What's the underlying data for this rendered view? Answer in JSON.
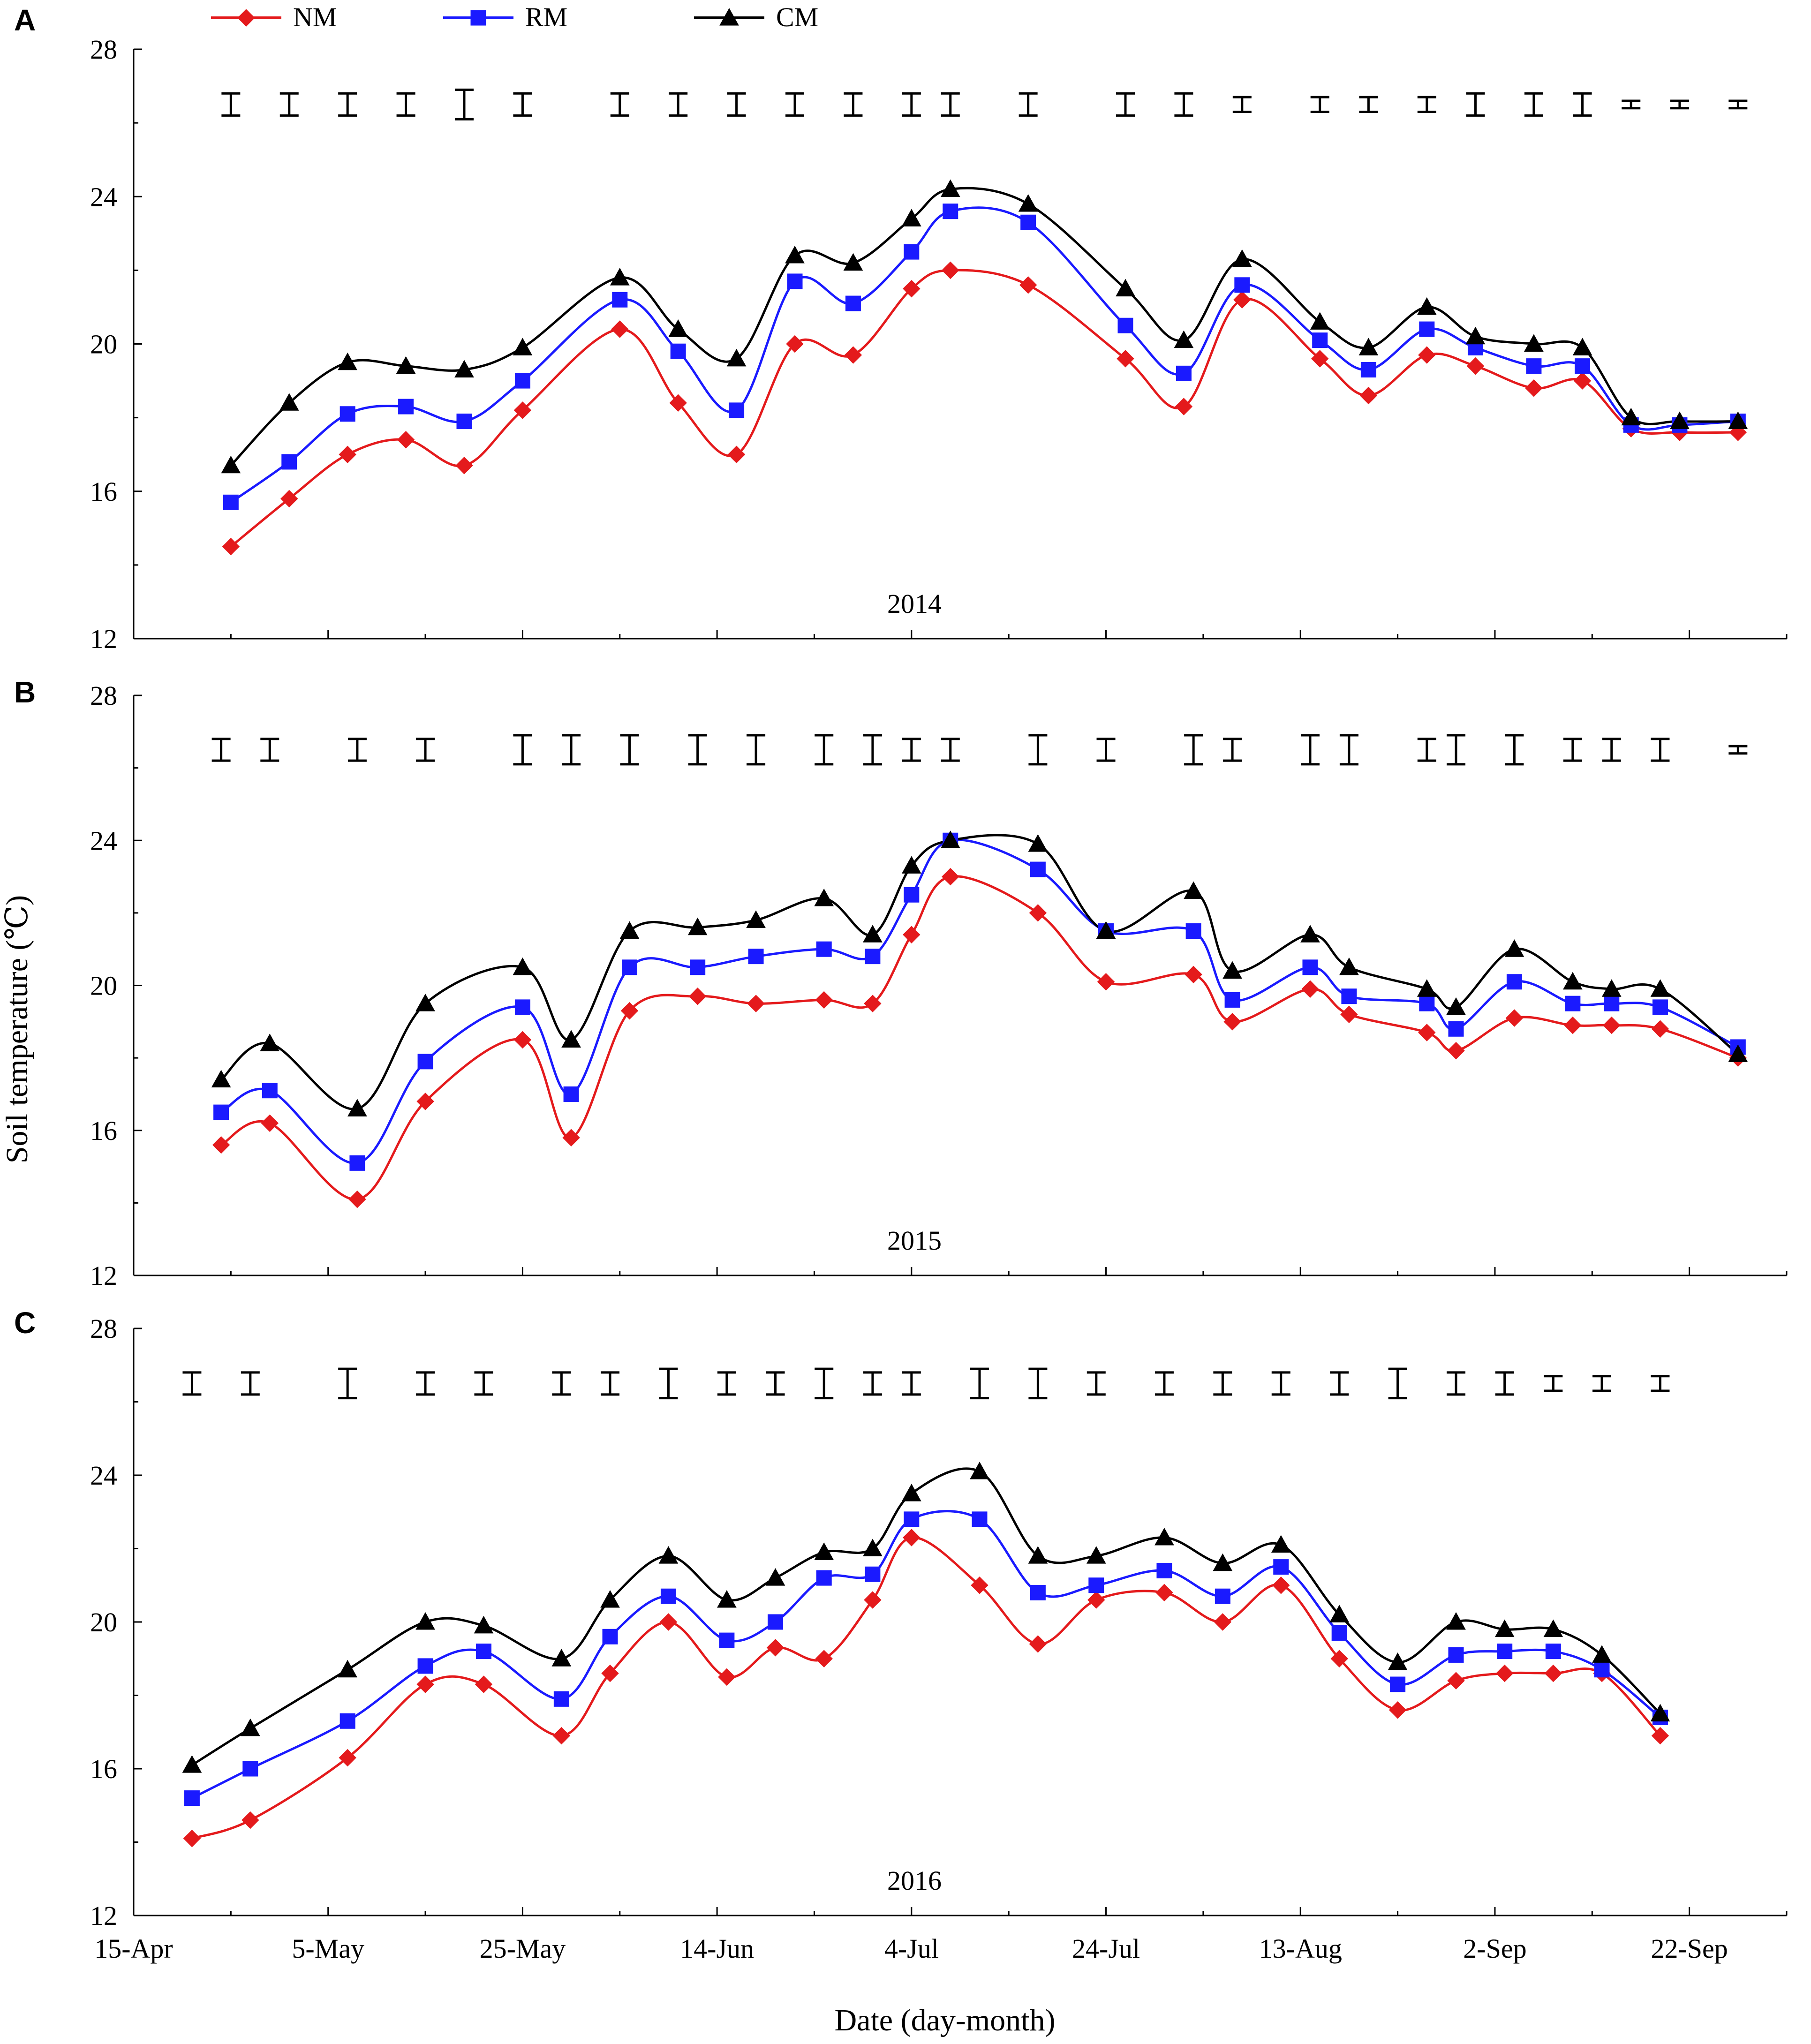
{
  "colors": {
    "NM": "#e41a1c",
    "RM": "#1a1aff",
    "CM": "#000000",
    "axis": "#000000"
  },
  "legend": [
    {
      "key": "NM",
      "label": "NM",
      "marker": "diamond"
    },
    {
      "key": "RM",
      "label": "RM",
      "marker": "square"
    },
    {
      "key": "CM",
      "label": "CM",
      "marker": "triangle"
    }
  ],
  "shared": {
    "ylabel": "Soil temperature (℃)",
    "xlabel": "Date (day-month)",
    "ylim": [
      12,
      28
    ],
    "yticks": [
      12,
      16,
      20,
      24,
      28
    ],
    "xlim_day_of_year": [
      105,
      275
    ],
    "xticks": [
      {
        "day": 105,
        "label": "15-Apr"
      },
      {
        "day": 125,
        "label": "5-May"
      },
      {
        "day": 145,
        "label": "25-May"
      },
      {
        "day": 165,
        "label": "14-Jun"
      },
      {
        "day": 185,
        "label": "4-Jul"
      },
      {
        "day": 205,
        "label": "24-Jul"
      },
      {
        "day": 225,
        "label": "13-Aug"
      },
      {
        "day": 245,
        "label": "2-Sep"
      },
      {
        "day": 265,
        "label": "22-Sep"
      }
    ]
  },
  "chart_data": [
    {
      "type": "line",
      "panel": "A",
      "annotation": "2014",
      "x": [
        115,
        121,
        127,
        133,
        139,
        145,
        155,
        161,
        167,
        173,
        179,
        185,
        189,
        197,
        207,
        213,
        219,
        227,
        232,
        238,
        243,
        249,
        254,
        259,
        264,
        270
      ],
      "series": [
        {
          "name": "NM",
          "values": [
            14.5,
            15.8,
            17.0,
            17.4,
            16.7,
            18.2,
            20.4,
            18.4,
            17.0,
            20.0,
            19.7,
            21.5,
            22.0,
            21.6,
            19.6,
            18.3,
            21.2,
            19.6,
            18.6,
            19.7,
            19.4,
            18.8,
            19.0,
            17.7,
            17.6,
            17.6
          ]
        },
        {
          "name": "RM",
          "values": [
            15.7,
            16.8,
            18.1,
            18.3,
            17.9,
            19.0,
            21.2,
            19.8,
            18.2,
            21.7,
            21.1,
            22.5,
            23.6,
            23.3,
            20.5,
            19.2,
            21.6,
            20.1,
            19.3,
            20.4,
            19.9,
            19.4,
            19.4,
            17.8,
            17.8,
            17.9
          ]
        },
        {
          "name": "CM",
          "values": [
            16.7,
            18.4,
            19.5,
            19.4,
            19.3,
            19.9,
            21.8,
            20.4,
            19.6,
            22.4,
            22.2,
            23.4,
            24.2,
            23.8,
            21.5,
            20.1,
            22.3,
            20.6,
            19.9,
            21.0,
            20.2,
            20.0,
            19.9,
            18.0,
            17.9,
            17.9
          ]
        }
      ],
      "error_bar_halfwidth": [
        0.3,
        0.3,
        0.3,
        0.3,
        0.4,
        0.3,
        0.3,
        0.3,
        0.3,
        0.3,
        0.3,
        0.3,
        0.3,
        0.3,
        0.3,
        0.3,
        0.2,
        0.2,
        0.2,
        0.2,
        0.3,
        0.3,
        0.3,
        0.1,
        0.1,
        0.1
      ]
    },
    {
      "type": "line",
      "panel": "B",
      "annotation": "2015",
      "x": [
        114,
        119,
        128,
        135,
        145,
        150,
        156,
        163,
        169,
        176,
        181,
        185,
        189,
        198,
        205,
        214,
        218,
        226,
        230,
        238,
        241,
        247,
        253,
        257,
        262,
        270
      ],
      "series": [
        {
          "name": "NM",
          "values": [
            15.6,
            16.2,
            14.1,
            16.8,
            18.5,
            15.8,
            19.3,
            19.7,
            19.5,
            19.6,
            19.5,
            21.4,
            23.0,
            22.0,
            20.1,
            20.3,
            19.0,
            19.9,
            19.2,
            18.7,
            18.2,
            19.1,
            18.9,
            18.9,
            18.8,
            18.0
          ]
        },
        {
          "name": "RM",
          "values": [
            16.5,
            17.1,
            15.1,
            17.9,
            19.4,
            17.0,
            20.5,
            20.5,
            20.8,
            21.0,
            20.8,
            22.5,
            24.0,
            23.2,
            21.5,
            21.5,
            19.6,
            20.5,
            19.7,
            19.5,
            18.8,
            20.1,
            19.5,
            19.5,
            19.4,
            18.3
          ]
        },
        {
          "name": "CM",
          "values": [
            17.4,
            18.4,
            16.6,
            19.5,
            20.5,
            18.5,
            21.5,
            21.6,
            21.8,
            22.4,
            21.4,
            23.3,
            24.0,
            23.9,
            21.5,
            22.6,
            20.4,
            21.4,
            20.5,
            19.9,
            19.4,
            21.0,
            20.1,
            19.9,
            19.9,
            18.1
          ]
        }
      ],
      "error_bar_halfwidth": [
        0.3,
        0.3,
        0.3,
        0.3,
        0.4,
        0.4,
        0.4,
        0.4,
        0.4,
        0.4,
        0.4,
        0.3,
        0.3,
        0.4,
        0.3,
        0.4,
        0.3,
        0.4,
        0.4,
        0.3,
        0.4,
        0.4,
        0.3,
        0.3,
        0.3,
        0.1
      ]
    },
    {
      "type": "line",
      "panel": "C",
      "annotation": "2016",
      "x": [
        111,
        117,
        127,
        135,
        141,
        149,
        154,
        160,
        166,
        171,
        176,
        181,
        185,
        192,
        198,
        204,
        211,
        217,
        223,
        229,
        235,
        241,
        246,
        251,
        256,
        262
      ],
      "series": [
        {
          "name": "NM",
          "values": [
            14.1,
            14.6,
            16.3,
            18.3,
            18.3,
            16.9,
            18.6,
            20.0,
            18.5,
            19.3,
            19.0,
            20.6,
            22.3,
            21.0,
            19.4,
            20.6,
            20.8,
            20.0,
            21.0,
            19.0,
            17.6,
            18.4,
            18.6,
            18.6,
            18.6,
            16.9
          ]
        },
        {
          "name": "RM",
          "values": [
            15.2,
            16.0,
            17.3,
            18.8,
            19.2,
            17.9,
            19.6,
            20.7,
            19.5,
            20.0,
            21.2,
            21.3,
            22.8,
            22.8,
            20.8,
            21.0,
            21.4,
            20.7,
            21.5,
            19.7,
            18.3,
            19.1,
            19.2,
            19.2,
            18.7,
            17.4
          ]
        },
        {
          "name": "CM",
          "values": [
            16.1,
            17.1,
            18.7,
            20.0,
            19.9,
            19.0,
            20.6,
            21.8,
            20.6,
            21.2,
            21.9,
            22.0,
            23.5,
            24.1,
            21.8,
            21.8,
            22.3,
            21.6,
            22.1,
            20.2,
            18.9,
            20.0,
            19.8,
            19.8,
            19.1,
            17.5
          ]
        }
      ],
      "error_bar_halfwidth": [
        0.3,
        0.3,
        0.4,
        0.3,
        0.3,
        0.3,
        0.3,
        0.4,
        0.3,
        0.3,
        0.4,
        0.3,
        0.3,
        0.4,
        0.4,
        0.3,
        0.3,
        0.3,
        0.3,
        0.3,
        0.4,
        0.3,
        0.3,
        0.2,
        0.2,
        0.2
      ]
    }
  ]
}
